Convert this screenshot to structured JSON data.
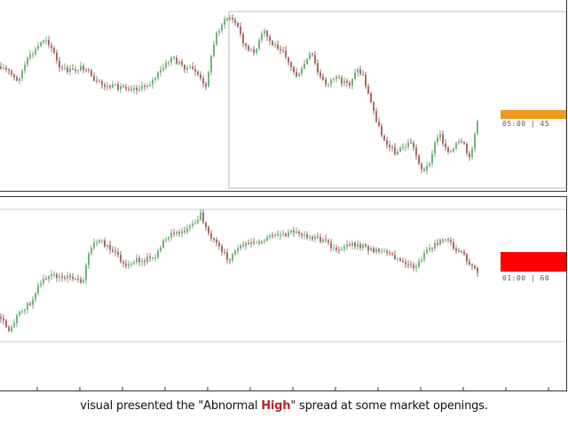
{
  "colors": {
    "bull": "#74b27a",
    "bear": "#a86a6a",
    "frame": "#333333",
    "selection": "#bbbbbb",
    "level_line": "#cccccc",
    "spread_normal": "#ee9a1f",
    "spread_high": "#ff0000"
  },
  "top_panel": {
    "spread_label": "05:00 | 45"
  },
  "bottom_panel": {
    "spread_label": "01:00 | 60"
  },
  "caption": {
    "before": "visual presented the \"Abnormal ",
    "highlight": "High",
    "after": "\" spread at some market openings."
  }
}
